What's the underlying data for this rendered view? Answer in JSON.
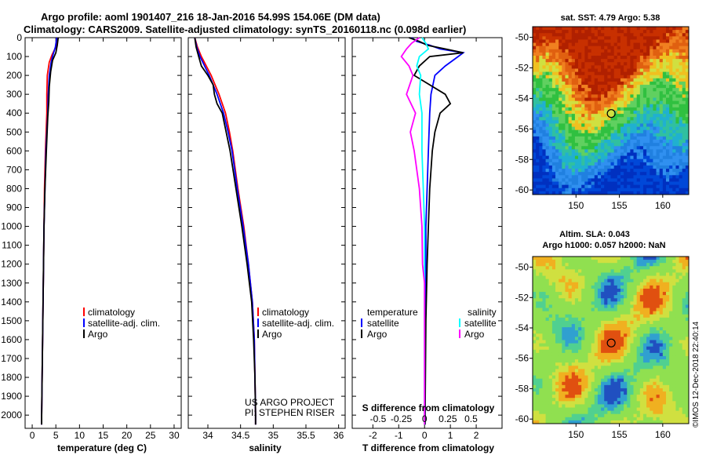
{
  "title": {
    "line1": "Argo profile: aoml 1901407_216 18-Jan-2016 54.99S 154.06E (DM data)",
    "line2": "Climatology: CARS2009. Satellite-adjusted climatology: synTS_20160118.nc (0.098d earlier)"
  },
  "colors": {
    "climatology": "#ff0000",
    "satellite": "#0000ff",
    "argo": "#000000",
    "sat_salinity": "#00ffff",
    "argo_salinity": "#ff00ff"
  },
  "credit": {
    "line1": "US ARGO PROJECT",
    "line2": "PI: STEPHEN RISER"
  },
  "vertical_stamp": "©IMOS 12-Dec-2018 22:40:14",
  "panel_labels": {
    "temperature_xlabel": "temperature (deg C)",
    "salinity_xlabel": "salinity",
    "diff_xlabel": "T difference from climatology",
    "diff_top_label": "S difference from climatology",
    "sst_title": "sat. SST: 4.79 Argo: 5.38",
    "sla_title1": "Altim. SLA: 0.043",
    "sla_title2": "Argo h1000: 0.057 h2000: NaN"
  },
  "legends": {
    "temperature": [
      "climatology",
      "satellite-adj. clim.",
      "Argo"
    ],
    "salinity": [
      "climatology",
      "satellite-adj. clim.",
      "Argo"
    ],
    "diff_temp_head": "temperature",
    "diff_sal_head": "salinity",
    "diff_temp": [
      "satellite",
      "Argo"
    ],
    "diff_sal": [
      "satellite",
      "Argo"
    ]
  },
  "chart_data": [
    {
      "type": "line",
      "xlabel": "temperature (deg C)",
      "xlim": [
        -1.5,
        31.5
      ],
      "ylim": [
        2070,
        0
      ],
      "xticks": [
        0,
        5,
        10,
        15,
        20,
        25,
        30
      ],
      "yticks": [
        0,
        100,
        200,
        300,
        400,
        500,
        600,
        700,
        800,
        900,
        1000,
        1100,
        1200,
        1300,
        1400,
        1500,
        1600,
        1700,
        1800,
        1900,
        2000
      ],
      "series": [
        {
          "name": "climatology",
          "depth": [
            0,
            50,
            90,
            130,
            200,
            300,
            400,
            600,
            800,
            1000,
            1200,
            1400,
            1600,
            1800,
            2000,
            2050
          ],
          "values": [
            5.4,
            5.0,
            4.2,
            3.6,
            3.2,
            3.1,
            3.1,
            2.8,
            2.6,
            2.5,
            2.4,
            2.3,
            2.2,
            2.1,
            2.0,
            2.0
          ]
        },
        {
          "name": "satellite-adj. clim.",
          "depth": [
            0,
            50,
            90,
            130,
            200,
            300,
            400,
            600,
            800,
            1000,
            1200,
            1400,
            1600,
            1800,
            2000,
            2050
          ],
          "values": [
            5.2,
            4.9,
            4.4,
            4.0,
            3.6,
            3.4,
            3.3,
            2.9,
            2.7,
            2.5,
            2.4,
            2.3,
            2.2,
            2.1,
            2.0,
            2.0
          ]
        },
        {
          "name": "Argo",
          "depth": [
            0,
            40,
            80,
            120,
            180,
            260,
            340,
            420,
            600,
            800,
            1000,
            1200,
            1400,
            1600,
            1800,
            2000,
            2050
          ],
          "values": [
            5.5,
            5.3,
            5.0,
            4.3,
            3.9,
            3.6,
            3.5,
            3.3,
            3.0,
            2.7,
            2.5,
            2.4,
            2.3,
            2.2,
            2.1,
            2.0,
            2.0
          ]
        }
      ]
    },
    {
      "type": "line",
      "xlabel": "salinity",
      "xlim": [
        33.7,
        36.1
      ],
      "ylim": [
        2070,
        0
      ],
      "xticks": [
        34,
        34.5,
        35,
        35.5,
        36
      ],
      "series": [
        {
          "name": "climatology",
          "depth": [
            0,
            50,
            100,
            200,
            300,
            400,
            500,
            600,
            800,
            1000,
            1200,
            1400,
            1600,
            1800,
            2000,
            2050
          ],
          "values": [
            33.8,
            33.84,
            33.9,
            34.05,
            34.17,
            34.27,
            34.33,
            34.38,
            34.46,
            34.55,
            34.62,
            34.68,
            34.71,
            34.72,
            34.73,
            34.73
          ]
        },
        {
          "name": "satellite-adj. clim.",
          "depth": [
            0,
            50,
            100,
            200,
            300,
            400,
            500,
            600,
            800,
            1000,
            1200,
            1400,
            1600,
            1800,
            2000,
            2050
          ],
          "values": [
            33.8,
            33.83,
            33.88,
            34.02,
            34.14,
            34.24,
            34.31,
            34.37,
            34.45,
            34.54,
            34.62,
            34.68,
            34.71,
            34.72,
            34.73,
            34.73
          ]
        },
        {
          "name": "Argo",
          "depth": [
            0,
            50,
            100,
            150,
            200,
            250,
            300,
            350,
            400,
            500,
            600,
            800,
            1000,
            1200,
            1400,
            1600,
            1800,
            2000,
            2050
          ],
          "values": [
            33.8,
            33.82,
            33.86,
            33.9,
            34.0,
            34.08,
            34.1,
            34.14,
            34.22,
            34.28,
            34.34,
            34.43,
            34.52,
            34.6,
            34.67,
            34.7,
            34.72,
            34.73,
            34.73
          ]
        }
      ]
    },
    {
      "type": "line",
      "xlabel": "T difference from climatology",
      "xlim": [
        -2.8,
        3.0
      ],
      "ylim": [
        2070,
        0
      ],
      "xticks": [
        -2,
        -1,
        0,
        1,
        2
      ],
      "secondary_xlabel": "S difference from climatology",
      "secondary_xticks": [
        "-0.5",
        "-0.25",
        "0",
        "0.25",
        "0.5"
      ],
      "series": [
        {
          "name": "temperature satellite",
          "depth": [
            0,
            20,
            40,
            60,
            80,
            100,
            150,
            200,
            300,
            400,
            600,
            800,
            1000,
            1200,
            1500,
            2000,
            2050
          ],
          "values": [
            -0.5,
            -0.3,
            0.2,
            0.6,
            1.5,
            1.3,
            0.8,
            0.4,
            0.25,
            0.2,
            0.15,
            0.1,
            0.05,
            0.05,
            0.03,
            0.02,
            0.02
          ]
        },
        {
          "name": "temperature Argo",
          "depth": [
            0,
            20,
            40,
            60,
            80,
            100,
            150,
            200,
            300,
            350,
            400,
            500,
            600,
            800,
            1000,
            1200,
            1500,
            2000,
            2050
          ],
          "values": [
            -0.6,
            -0.2,
            0.1,
            0.8,
            1.5,
            0.2,
            -0.2,
            -0.4,
            0.8,
            1.0,
            0.6,
            0.4,
            0.3,
            0.2,
            0.15,
            0.1,
            0.05,
            0.02,
            0.02
          ]
        },
        {
          "name": "salinity satellite",
          "depth": [
            0,
            30,
            60,
            100,
            150,
            200,
            300,
            400,
            600,
            800,
            1000,
            1200,
            1500,
            2000,
            2050
          ],
          "values": [
            -0.1,
            0.05,
            0.15,
            -0.2,
            -0.3,
            -0.15,
            -0.2,
            -0.1,
            -0.1,
            -0.05,
            0.0,
            0.0,
            0.0,
            0.0,
            0.0
          ]
        },
        {
          "name": "salinity Argo",
          "depth": [
            0,
            30,
            60,
            100,
            150,
            200,
            300,
            400,
            500,
            600,
            800,
            1000,
            1200,
            1300,
            1500,
            2000,
            2050
          ],
          "values": [
            -0.2,
            -0.5,
            -0.7,
            -0.9,
            -0.6,
            -0.45,
            -0.7,
            -0.35,
            -0.55,
            -0.4,
            -0.2,
            -0.1,
            -0.08,
            0.0,
            0.0,
            0.0,
            0.0
          ]
        }
      ]
    },
    {
      "type": "heatmap",
      "title": "sat. SST: 4.79 Argo: 5.38",
      "xlim": [
        145,
        163
      ],
      "ylim": [
        -60.3,
        -49.3
      ],
      "xticks": [
        150,
        155,
        160
      ],
      "yticks": [
        -50,
        -52,
        -54,
        -56,
        -58,
        -60
      ],
      "argo_position": [
        154.06,
        -54.99
      ]
    },
    {
      "type": "heatmap",
      "title": "Altim. SLA: 0.043",
      "subtitle": "Argo h1000: 0.057 h2000: NaN",
      "xlim": [
        145,
        163
      ],
      "ylim": [
        -60.3,
        -49.3
      ],
      "xticks": [
        150,
        155,
        160
      ],
      "yticks": [
        -50,
        -52,
        -54,
        -56,
        -58,
        -60
      ],
      "argo_position": [
        154.06,
        -54.99
      ]
    }
  ]
}
